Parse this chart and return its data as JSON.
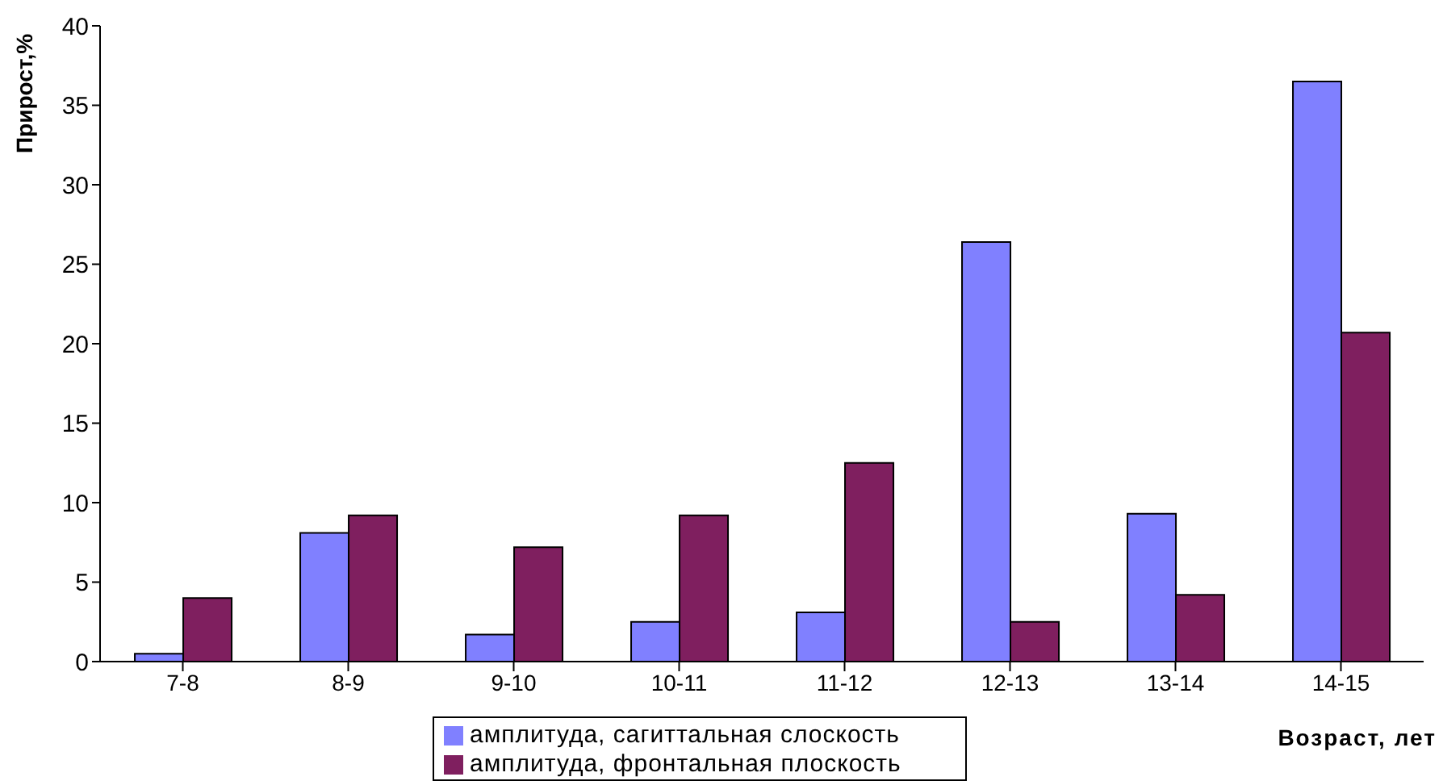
{
  "chart_data": {
    "type": "bar",
    "ylabel": "Прирост,%",
    "xlabel": "Возраст, лет",
    "categories": [
      "7-8",
      "8-9",
      "9-10",
      "10-11",
      "11-12",
      "12-13",
      "13-14",
      "14-15"
    ],
    "series": [
      {
        "name": "амплитуда, сагиттальная слоскость",
        "color": "#8080ff",
        "values": [
          0.5,
          8.1,
          1.7,
          2.5,
          3.1,
          26.4,
          9.3,
          36.5
        ]
      },
      {
        "name": "амплитуда, фронтальная плоскость",
        "color": "#7f1f5f",
        "values": [
          4.0,
          9.2,
          7.2,
          9.2,
          12.5,
          2.5,
          4.2,
          20.7
        ]
      }
    ],
    "ylim": [
      0,
      40
    ],
    "yticks": [
      0,
      5,
      10,
      15,
      20,
      25,
      30,
      35,
      40
    ],
    "grid": false,
    "legend": "bottom"
  }
}
